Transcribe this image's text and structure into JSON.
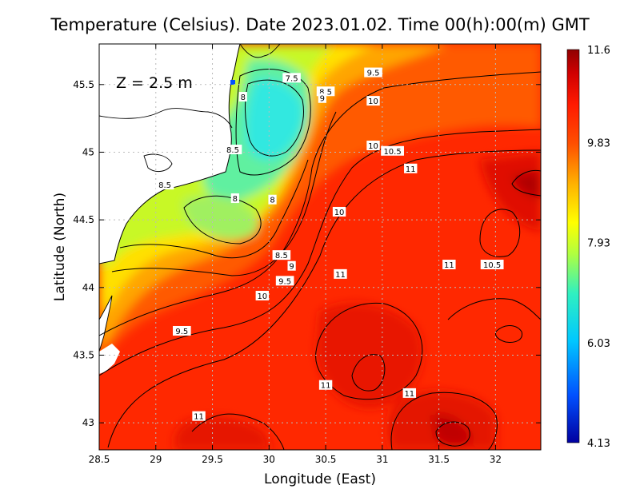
{
  "title": "Temperature (Celsius). Date 2023.01.02. Time 00(h):00(m) GMT",
  "depth_label": "Z = 2.5 m",
  "xlabel": "Longitude (East)",
  "ylabel": "Latitude (North)",
  "chart_data": {
    "type": "heatmap",
    "title": "Temperature (Celsius). Date 2023.01.02. Time 00(h):00(m) GMT",
    "xlabel": "Longitude (East)",
    "ylabel": "Latitude (North)",
    "xlim": [
      28.5,
      32.4
    ],
    "ylim": [
      42.8,
      45.8
    ],
    "x_ticks": [
      "28.5",
      "29",
      "29.5",
      "30",
      "30.5",
      "31",
      "31.5",
      "32"
    ],
    "x_tick_values": [
      28.5,
      29,
      29.5,
      30,
      30.5,
      31,
      31.5,
      32
    ],
    "y_ticks": [
      "43",
      "43.5",
      "44",
      "44.5",
      "45",
      "45.5"
    ],
    "y_tick_values": [
      43,
      43.5,
      44,
      44.5,
      45,
      45.5
    ],
    "grid": true,
    "colorbar": {
      "labels": [
        "11.6",
        "9.83",
        "7.93",
        "6.03",
        "4.13"
      ],
      "values": [
        11.6,
        9.83,
        7.93,
        6.03,
        4.13
      ],
      "min": 4.13,
      "max": 11.6,
      "colors": [
        "#0000a0",
        "#0050ff",
        "#00d0ff",
        "#30f0c0",
        "#c0ff40",
        "#ffff00",
        "#ffc000",
        "#ff6000",
        "#ff1a00",
        "#c00000",
        "#800000"
      ]
    },
    "contour_labels": [
      {
        "text": "7.5",
        "lon": 30.2,
        "lat": 45.55
      },
      {
        "text": "8.5",
        "lon": 30.5,
        "lat": 45.45
      },
      {
        "text": "9",
        "lon": 30.47,
        "lat": 45.4
      },
      {
        "text": "9.5",
        "lon": 30.92,
        "lat": 45.59
      },
      {
        "text": "10",
        "lon": 30.92,
        "lat": 45.38
      },
      {
        "text": "8",
        "lon": 29.77,
        "lat": 45.41
      },
      {
        "text": "8.5",
        "lon": 29.68,
        "lat": 45.02
      },
      {
        "text": "10",
        "lon": 30.92,
        "lat": 45.05
      },
      {
        "text": "10.5",
        "lon": 31.09,
        "lat": 45.01
      },
      {
        "text": "11",
        "lon": 31.25,
        "lat": 44.88
      },
      {
        "text": "8.5",
        "lon": 29.08,
        "lat": 44.76
      },
      {
        "text": "8",
        "lon": 29.7,
        "lat": 44.66
      },
      {
        "text": "8",
        "lon": 30.03,
        "lat": 44.65
      },
      {
        "text": "10",
        "lon": 30.62,
        "lat": 44.56
      },
      {
        "text": "8.5",
        "lon": 30.11,
        "lat": 44.24
      },
      {
        "text": "9",
        "lon": 30.2,
        "lat": 44.16
      },
      {
        "text": "9.5",
        "lon": 30.14,
        "lat": 44.05
      },
      {
        "text": "11",
        "lon": 31.59,
        "lat": 44.17
      },
      {
        "text": "10.5",
        "lon": 31.97,
        "lat": 44.17
      },
      {
        "text": "11",
        "lon": 30.63,
        "lat": 44.1
      },
      {
        "text": "10",
        "lon": 29.94,
        "lat": 43.94
      },
      {
        "text": "9.5",
        "lon": 29.23,
        "lat": 43.68
      },
      {
        "text": "11",
        "lon": 30.5,
        "lat": 43.28
      },
      {
        "text": "11",
        "lon": 31.24,
        "lat": 43.22
      },
      {
        "text": "11",
        "lon": 29.38,
        "lat": 43.05
      }
    ]
  }
}
